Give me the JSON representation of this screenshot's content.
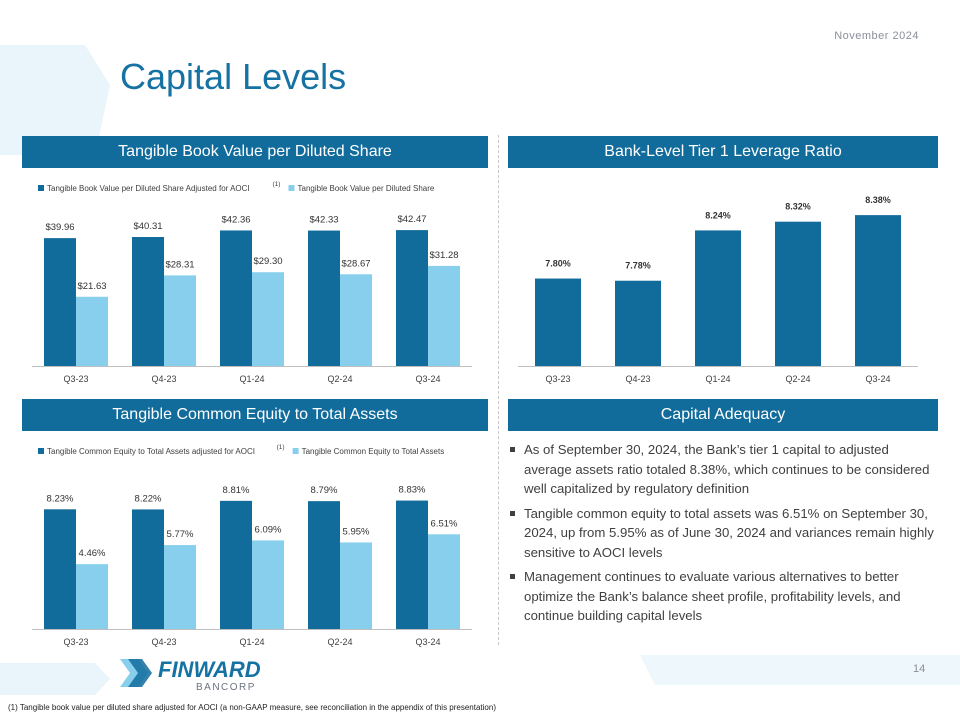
{
  "header": {
    "date": "November 2024",
    "title": "Capital Levels",
    "page_number": "14"
  },
  "colors": {
    "dark": "#116c9c",
    "light": "#87cfec",
    "accent": "#1672a3"
  },
  "panels": {
    "tbv": {
      "title": "Tangible Book Value per Diluted Share"
    },
    "tier1": {
      "title": "Bank-Level Tier 1 Leverage Ratio"
    },
    "tce": {
      "title": "Tangible Common Equity to Total Assets"
    },
    "capital": {
      "title": "Capital Adequacy"
    }
  },
  "chart_data": [
    {
      "id": "tbv",
      "type": "bar",
      "categories": [
        "Q3-23",
        "Q4-23",
        "Q1-24",
        "Q2-24",
        "Q3-24"
      ],
      "series": [
        {
          "name": "Tangible Book Value per Diluted Share Adjusted for AOCI",
          "superscript": "(1)",
          "values": [
            39.96,
            40.31,
            42.36,
            42.33,
            42.47
          ],
          "labels": [
            "$39.96",
            "$40.31",
            "$42.36",
            "$42.33",
            "$42.47"
          ]
        },
        {
          "name": "Tangible Book Value per Diluted Share",
          "superscript": "",
          "values": [
            21.63,
            28.31,
            29.3,
            28.67,
            31.28
          ],
          "labels": [
            "$21.63",
            "$28.31",
            "$29.30",
            "$28.67",
            "$31.28"
          ]
        }
      ],
      "ylim": [
        0,
        50
      ],
      "legend": "top"
    },
    {
      "id": "tier1",
      "type": "bar",
      "categories": [
        "Q3-23",
        "Q4-23",
        "Q1-24",
        "Q2-24",
        "Q3-24"
      ],
      "series": [
        {
          "name": "Bank-Level Tier 1 Leverage Ratio",
          "values": [
            7.8,
            7.78,
            8.24,
            8.32,
            8.38
          ],
          "labels": [
            "7.80%",
            "7.78%",
            "8.24%",
            "8.32%",
            "8.38%"
          ]
        }
      ],
      "ylim": [
        7.0,
        8.5
      ],
      "legend": "none"
    },
    {
      "id": "tce",
      "type": "bar",
      "categories": [
        "Q3-23",
        "Q4-23",
        "Q1-24",
        "Q2-24",
        "Q3-24"
      ],
      "series": [
        {
          "name": "Tangible Common Equity to Total Assets adjusted for AOCI",
          "superscript": "(1)",
          "values": [
            8.23,
            8.22,
            8.81,
            8.79,
            8.83
          ],
          "labels": [
            "8.23%",
            "8.22%",
            "8.81%",
            "8.79%",
            "8.83%"
          ]
        },
        {
          "name": "Tangible Common Equity to Total Assets",
          "superscript": "",
          "values": [
            4.46,
            5.77,
            6.09,
            5.95,
            6.51
          ],
          "labels": [
            "4.46%",
            "5.77%",
            "6.09%",
            "5.95%",
            "6.51%"
          ]
        }
      ],
      "ylim": [
        0,
        11
      ],
      "legend": "top"
    }
  ],
  "capital_adequacy": {
    "bullets": [
      "As of September 30, 2024, the Bank’s tier 1 capital to adjusted average assets ratio totaled 8.38%, which continues to be considered well capitalized by regulatory definition",
      "Tangible common equity to total assets was 6.51% on September 30, 2024, up from 5.95% as of June 30, 2024 and variances remain highly sensitive to AOCI levels",
      "Management continues to evaluate various alternatives to better optimize the Bank’s balance sheet profile, profitability levels, and continue building capital levels"
    ]
  },
  "logo": {
    "name": "FINWARD",
    "sub": "BANCORP"
  },
  "footnote": "(1) Tangible book value per diluted share adjusted for AOCI (a non-GAAP measure, see reconciliation in the appendix of this presentation)"
}
